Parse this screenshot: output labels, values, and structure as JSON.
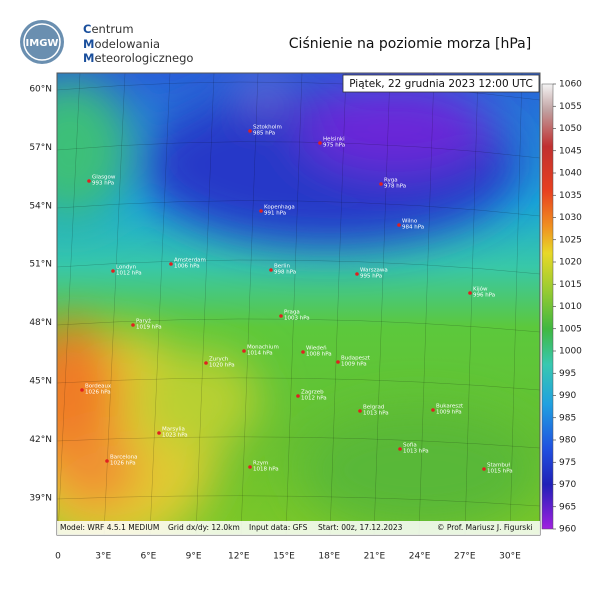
{
  "header": {
    "logo": "IMGW",
    "org": [
      "Centrum",
      "Modelowania",
      "Meteorologicznego"
    ],
    "title": "Ciśnienie na poziomie morza [hPa]"
  },
  "timestamp": "Piątek, 22 grudnia 2023 12:00 UTC",
  "lat_labels": [
    "60°N",
    "57°N",
    "54°N",
    "51°N",
    "48°N",
    "45°N",
    "42°N",
    "39°N"
  ],
  "lon_labels": [
    "0",
    "3°E",
    "6°E",
    "9°E",
    "12°E",
    "15°E",
    "18°E",
    "21°E",
    "24°E",
    "27°E",
    "30°E"
  ],
  "colorbar": {
    "ticks": [
      1060,
      1055,
      1050,
      1045,
      1040,
      1035,
      1030,
      1025,
      1020,
      1015,
      1010,
      1005,
      1000,
      995,
      990,
      985,
      980,
      975,
      970,
      965,
      960
    ]
  },
  "cities": [
    {
      "name": "Glasgow",
      "pressure": "993 hPa"
    },
    {
      "name": "Londyn",
      "pressure": "1012 hPa"
    },
    {
      "name": "Amsterdam",
      "pressure": "1006 hPa"
    },
    {
      "name": "Kopenhaga",
      "pressure": "991 hPa"
    },
    {
      "name": "Sztokholm",
      "pressure": "985 hPa"
    },
    {
      "name": "Helsinki",
      "pressure": "975 hPa"
    },
    {
      "name": "Ryga",
      "pressure": "978 hPa"
    },
    {
      "name": "Wilno",
      "pressure": "984 hPa"
    },
    {
      "name": "Berlin",
      "pressure": "998 hPa"
    },
    {
      "name": "Warszawa",
      "pressure": "995 hPa"
    },
    {
      "name": "Kijów",
      "pressure": "996 hPa"
    },
    {
      "name": "Paryż",
      "pressure": "1019 hPa"
    },
    {
      "name": "Praga",
      "pressure": "1003 hPa"
    },
    {
      "name": "Monachium",
      "pressure": "1014 hPa"
    },
    {
      "name": "Zurych",
      "pressure": "1020 hPa"
    },
    {
      "name": "Wiedeń",
      "pressure": "1008 hPa"
    },
    {
      "name": "Budapeszt",
      "pressure": "1009 hPa"
    },
    {
      "name": "Bordeaux",
      "pressure": "1026 hPa"
    },
    {
      "name": "Marsylia",
      "pressure": "1023 hPa"
    },
    {
      "name": "Zagrzeb",
      "pressure": "1012 hPa"
    },
    {
      "name": "Belgrad",
      "pressure": "1013 hPa"
    },
    {
      "name": "Bukareszt",
      "pressure": "1009 hPa"
    },
    {
      "name": "Barcelona",
      "pressure": "1026 hPa"
    },
    {
      "name": "Rzym",
      "pressure": "1018 hPa"
    },
    {
      "name": "Sofia",
      "pressure": "1013 hPa"
    },
    {
      "name": "Stambuł",
      "pressure": "1015 hPa"
    }
  ],
  "footer": [
    "Model: WRF 4.5.1 MEDIUM",
    "Grid dx/dy: 12.0km",
    "Input data: GFS",
    "Start: 00z, 17.12.2023",
    "© Prof. Mariusz J. Figurski"
  ]
}
